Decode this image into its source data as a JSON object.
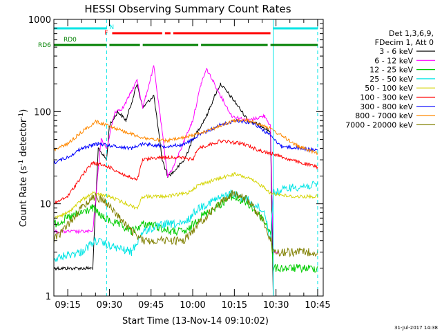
{
  "chart_data": {
    "type": "line",
    "title": "HESSI Observing Summary Count Rates",
    "xlabel": "Start Time (13-Nov-14 09:10:02)",
    "ylabel_main": "Count Rate (s",
    "ylabel_sup1": "-1",
    "ylabel_mid": " detector",
    "ylabel_sup2": "-1",
    "ylabel_end": ")",
    "yscale": "log",
    "ylim": [
      1,
      1000
    ],
    "xlim": [
      "09:10",
      "10:47"
    ],
    "x_ticks": [
      "09:15",
      "09:30",
      "09:45",
      "10:00",
      "10:15",
      "10:30",
      "10:45"
    ],
    "y_ticks": [
      "1",
      "10",
      "100",
      "1000"
    ],
    "legend_header": [
      "Det 1,3,6,9,",
      "FDecim 1, Att 0"
    ],
    "footer_date": "31-Jul-2017 14:38",
    "markers": {
      "rd0": "RD0",
      "rd6": "RD6",
      "n": "N",
      "f": "F"
    },
    "series": [
      {
        "name": "3 - 6 keV",
        "color": "#000000",
        "points": [
          [
            "09:10",
            2
          ],
          [
            "09:24",
            2
          ],
          [
            "09:26",
            40
          ],
          [
            "09:29",
            30
          ],
          [
            "09:30",
            70
          ],
          [
            "09:33",
            100
          ],
          [
            "09:36",
            80
          ],
          [
            "09:40",
            200
          ],
          [
            "09:42",
            110
          ],
          [
            "09:46",
            150
          ],
          [
            "09:49",
            30
          ],
          [
            "09:51",
            20
          ],
          [
            "09:53",
            22
          ],
          [
            "09:57",
            30
          ],
          [
            "10:00",
            50
          ],
          [
            "10:05",
            90
          ],
          [
            "10:08",
            150
          ],
          [
            "10:10",
            200
          ],
          [
            "10:15",
            130
          ],
          [
            "10:20",
            80
          ],
          [
            "10:25",
            70
          ],
          [
            "10:28",
            60
          ],
          [
            "10:29",
            1
          ]
        ]
      },
      {
        "name": "6 - 12 keV",
        "color": "#ff00ff",
        "points": [
          [
            "09:10",
            5
          ],
          [
            "09:24",
            5
          ],
          [
            "09:27",
            50
          ],
          [
            "09:29",
            40
          ],
          [
            "09:32",
            100
          ],
          [
            "09:35",
            110
          ],
          [
            "09:40",
            220
          ],
          [
            "09:42",
            110
          ],
          [
            "09:46",
            310
          ],
          [
            "09:49",
            60
          ],
          [
            "09:51",
            20
          ],
          [
            "09:53",
            25
          ],
          [
            "10:00",
            80
          ],
          [
            "10:03",
            200
          ],
          [
            "10:05",
            290
          ],
          [
            "10:10",
            150
          ],
          [
            "10:14",
            90
          ],
          [
            "10:20",
            80
          ],
          [
            "10:26",
            90
          ],
          [
            "10:28",
            70
          ],
          [
            "10:29",
            3
          ],
          [
            "10:31",
            3
          ]
        ]
      },
      {
        "name": "12 - 25 keV",
        "color": "#00cc00",
        "points": [
          [
            "09:10",
            6
          ],
          [
            "09:15",
            7
          ],
          [
            "09:20",
            8
          ],
          [
            "09:24",
            9
          ],
          [
            "09:28",
            7
          ],
          [
            "09:33",
            6
          ],
          [
            "09:38",
            5
          ],
          [
            "09:42",
            6
          ],
          [
            "09:45",
            6
          ],
          [
            "09:52",
            5
          ],
          [
            "09:58",
            5
          ],
          [
            "10:02",
            7
          ],
          [
            "10:08",
            9
          ],
          [
            "10:14",
            12
          ],
          [
            "10:20",
            10
          ],
          [
            "10:25",
            7
          ],
          [
            "10:28",
            5
          ],
          [
            "10:29",
            2
          ],
          [
            "10:45",
            2
          ]
        ]
      },
      {
        "name": "25 - 50 keV",
        "color": "#00e5e5",
        "points": [
          [
            "09:10",
            2.5
          ],
          [
            "09:15",
            2.8
          ],
          [
            "09:20",
            3
          ],
          [
            "09:25",
            4
          ],
          [
            "09:30",
            3.5
          ],
          [
            "09:38",
            3
          ],
          [
            "09:42",
            5
          ],
          [
            "09:50",
            6
          ],
          [
            "09:57",
            6
          ],
          [
            "10:02",
            9
          ],
          [
            "10:08",
            11
          ],
          [
            "10:14",
            13
          ],
          [
            "10:20",
            11
          ],
          [
            "10:26",
            8
          ],
          [
            "10:28",
            4
          ],
          [
            "10:29",
            13
          ],
          [
            "10:35",
            15
          ],
          [
            "10:45",
            16
          ]
        ]
      },
      {
        "name": "50 - 100 keV",
        "color": "#d4d400",
        "points": [
          [
            "09:10",
            7
          ],
          [
            "09:15",
            8
          ],
          [
            "09:20",
            11
          ],
          [
            "09:24",
            13
          ],
          [
            "09:30",
            12
          ],
          [
            "09:36",
            10
          ],
          [
            "09:40",
            9
          ],
          [
            "09:42",
            12
          ],
          [
            "09:50",
            12
          ],
          [
            "09:58",
            13
          ],
          [
            "10:02",
            16
          ],
          [
            "10:10",
            19
          ],
          [
            "10:15",
            21
          ],
          [
            "10:20",
            19
          ],
          [
            "10:26",
            15
          ],
          [
            "10:28",
            13
          ],
          [
            "10:29",
            13
          ],
          [
            "10:35",
            12
          ],
          [
            "10:45",
            12
          ]
        ]
      },
      {
        "name": "100 - 300 keV",
        "color": "#ff0000",
        "points": [
          [
            "09:10",
            10
          ],
          [
            "09:15",
            12
          ],
          [
            "09:20",
            20
          ],
          [
            "09:24",
            28
          ],
          [
            "09:30",
            25
          ],
          [
            "09:36",
            20
          ],
          [
            "09:40",
            18
          ],
          [
            "09:42",
            30
          ],
          [
            "09:48",
            32
          ],
          [
            "09:55",
            32
          ],
          [
            "10:00",
            30
          ],
          [
            "10:02",
            40
          ],
          [
            "10:10",
            48
          ],
          [
            "10:18",
            45
          ],
          [
            "10:24",
            38
          ],
          [
            "10:28",
            35
          ],
          [
            "10:29",
            35
          ],
          [
            "10:35",
            30
          ],
          [
            "10:45",
            25
          ]
        ]
      },
      {
        "name": "300 - 800 keV",
        "color": "#0000ff",
        "points": [
          [
            "09:10",
            28
          ],
          [
            "09:15",
            32
          ],
          [
            "09:20",
            40
          ],
          [
            "09:26",
            45
          ],
          [
            "09:32",
            42
          ],
          [
            "09:38",
            40
          ],
          [
            "09:42",
            45
          ],
          [
            "09:50",
            42
          ],
          [
            "09:57",
            44
          ],
          [
            "10:02",
            55
          ],
          [
            "10:10",
            72
          ],
          [
            "10:16",
            80
          ],
          [
            "10:22",
            75
          ],
          [
            "10:28",
            55
          ],
          [
            "10:32",
            42
          ],
          [
            "10:45",
            38
          ]
        ]
      },
      {
        "name": "800 - 7000 keV",
        "color": "#ff8800",
        "points": [
          [
            "09:10",
            38
          ],
          [
            "09:15",
            45
          ],
          [
            "09:20",
            60
          ],
          [
            "09:25",
            78
          ],
          [
            "09:30",
            70
          ],
          [
            "09:36",
            60
          ],
          [
            "09:42",
            52
          ],
          [
            "09:50",
            48
          ],
          [
            "09:57",
            52
          ],
          [
            "10:02",
            58
          ],
          [
            "10:10",
            70
          ],
          [
            "10:15",
            80
          ],
          [
            "10:20",
            80
          ],
          [
            "10:26",
            70
          ],
          [
            "10:28",
            65
          ],
          [
            "10:32",
            55
          ],
          [
            "10:38",
            42
          ],
          [
            "10:45",
            35
          ]
        ]
      },
      {
        "name": "7000 - 20000 keV",
        "color": "#808000",
        "points": [
          [
            "09:10",
            4
          ],
          [
            "09:15",
            6
          ],
          [
            "09:20",
            9
          ],
          [
            "09:24",
            12
          ],
          [
            "09:28",
            11
          ],
          [
            "09:32",
            8
          ],
          [
            "09:38",
            5
          ],
          [
            "09:42",
            4
          ],
          [
            "09:50",
            4
          ],
          [
            "09:57",
            4
          ],
          [
            "10:02",
            6
          ],
          [
            "10:08",
            9
          ],
          [
            "10:14",
            13
          ],
          [
            "10:20",
            11
          ],
          [
            "10:26",
            6
          ],
          [
            "10:28",
            4
          ],
          [
            "10:29",
            3
          ],
          [
            "10:45",
            3
          ]
        ]
      }
    ]
  }
}
